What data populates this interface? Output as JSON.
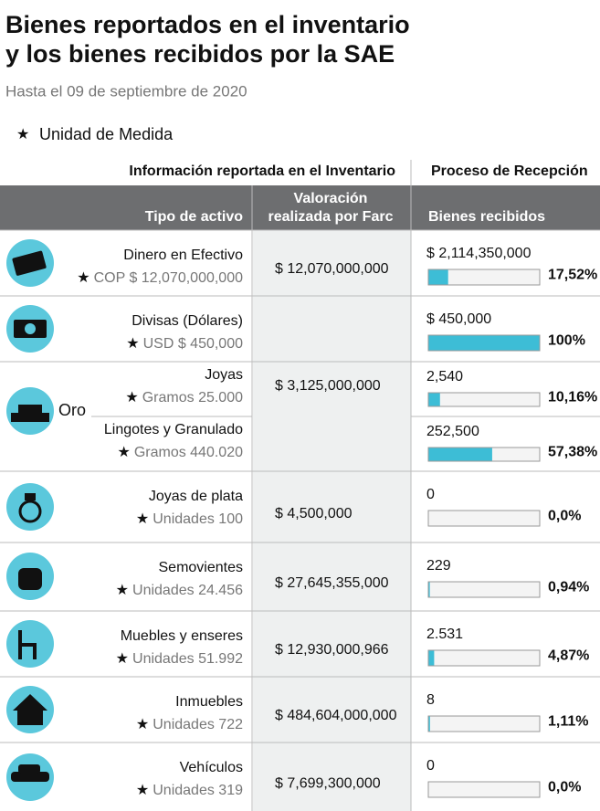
{
  "header": {
    "title_line1": "Bienes reportados en el inventario",
    "title_line2": "y los bienes recibidos por la SAE",
    "subtitle": "Hasta el 09 de septiembre de 2020"
  },
  "legend": {
    "label": "Unidad de Medida"
  },
  "table": {
    "group_headers": [
      "Información reportada en el Inventario",
      "Proceso de Recepción"
    ],
    "columns": [
      "Tipo de activo",
      "Valoración",
      "realizada por Farc",
      "Bienes recibidos"
    ],
    "group_label": "Oro",
    "rows": [
      {
        "name": "Dinero en Efectivo",
        "unit": "COP $ 12,070,000,000",
        "valuation": "$ 12,070,000,000",
        "received": "$ 2,114,350,000",
        "percent": 17.52,
        "percent_label": "17,52%"
      },
      {
        "name": "Divisas (Dólares)",
        "unit": "USD $ 450,000",
        "received": "$ 450,000",
        "percent": 100,
        "percent_label": "100%"
      },
      {
        "name": "Joyas",
        "unit": "Gramos 25.000",
        "valuation": "$ 3,125,000,000",
        "received": "2,540",
        "percent": 10.16,
        "percent_label": "10,16%"
      },
      {
        "name": "Lingotes y Granulado",
        "unit": "Gramos 440.020",
        "received": "252,500",
        "percent": 57.38,
        "percent_label": "57,38%"
      },
      {
        "name": "Joyas de plata",
        "unit": "Unidades 100",
        "valuation": "$ 4,500,000",
        "received": "0",
        "percent": 0,
        "percent_label": "0,0%"
      },
      {
        "name": "Semovientes",
        "unit": "Unidades 24.456",
        "valuation": "$ 27,645,355,000",
        "received": "229",
        "percent": 0.94,
        "percent_label": "0,94%"
      },
      {
        "name": "Muebles y enseres",
        "unit": "Unidades 51.992",
        "valuation": "$ 12,930,000,966",
        "received": "2.531",
        "percent": 4.87,
        "percent_label": "4,87%"
      },
      {
        "name": "Inmuebles",
        "unit": "Unidades 722",
        "valuation": "$ 484,604,000,000",
        "received": "8",
        "percent": 1.11,
        "percent_label": "1,11%"
      },
      {
        "name": "Vehículos",
        "unit": "Unidades 319",
        "valuation": "$ 7,699,300,000",
        "received": "0",
        "percent": 0,
        "percent_label": "0,0%"
      }
    ]
  }
}
